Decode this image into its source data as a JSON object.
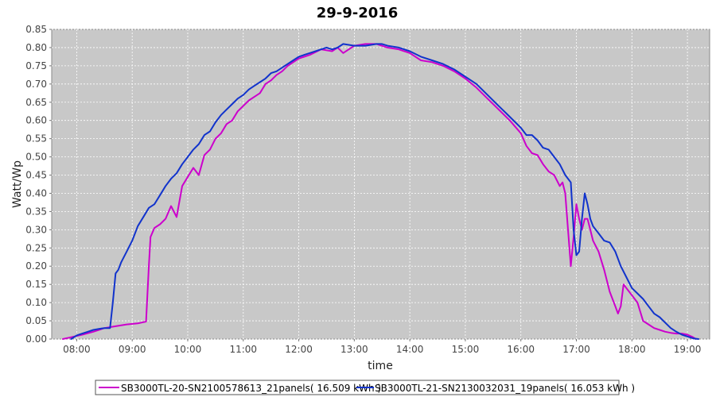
{
  "chart_data": {
    "type": "line",
    "title": "29-9-2016",
    "xlabel": "time",
    "ylabel": "Watt/Wp",
    "xlim": [
      7.55,
      19.4
    ],
    "ylim": [
      0,
      0.85
    ],
    "x_ticks": [
      8,
      9,
      10,
      11,
      12,
      13,
      14,
      15,
      16,
      17,
      18,
      19
    ],
    "x_tick_labels": [
      "08:00",
      "09:00",
      "10:00",
      "11:00",
      "12:00",
      "13:00",
      "14:00",
      "15:00",
      "16:00",
      "17:00",
      "18:00",
      "19:00"
    ],
    "y_ticks": [
      0,
      0.05,
      0.1,
      0.15,
      0.2,
      0.25,
      0.3,
      0.35,
      0.4,
      0.45,
      0.5,
      0.55,
      0.6,
      0.65,
      0.7,
      0.75,
      0.8,
      0.85
    ],
    "y_tick_labels": [
      "0.00",
      "0.05",
      "0.10",
      "0.15",
      "0.20",
      "0.25",
      "0.30",
      "0.35",
      "0.40",
      "0.45",
      "0.50",
      "0.55",
      "0.60",
      "0.65",
      "0.70",
      "0.75",
      "0.80",
      "0.85"
    ],
    "grid": true,
    "legend_position": "bottom",
    "plot_background": "#c8c8c8",
    "series": [
      {
        "name": "SB3000TL-20-SN2100578613_21panels( 16.509 kWh )",
        "color": "#cc00cc",
        "x": [
          7.75,
          7.9,
          8.1,
          8.3,
          8.5,
          8.7,
          8.9,
          9.1,
          9.25,
          9.3,
          9.33,
          9.4,
          9.5,
          9.6,
          9.7,
          9.8,
          9.9,
          10.0,
          10.1,
          10.2,
          10.3,
          10.4,
          10.5,
          10.6,
          10.7,
          10.8,
          10.9,
          11.0,
          11.1,
          11.2,
          11.3,
          11.4,
          11.5,
          11.6,
          11.7,
          11.8,
          11.9,
          12.0,
          12.2,
          12.4,
          12.6,
          12.7,
          12.8,
          13.0,
          13.2,
          13.4,
          13.6,
          13.8,
          14.0,
          14.2,
          14.4,
          14.6,
          14.8,
          15.0,
          15.2,
          15.4,
          15.6,
          15.8,
          16.0,
          16.1,
          16.2,
          16.3,
          16.4,
          16.5,
          16.6,
          16.7,
          16.75,
          16.8,
          16.85,
          16.9,
          16.95,
          17.0,
          17.05,
          17.1,
          17.15,
          17.2,
          17.25,
          17.3,
          17.4,
          17.5,
          17.6,
          17.7,
          17.75,
          17.8,
          17.85,
          17.9,
          18.0,
          18.1,
          18.2,
          18.3,
          18.4,
          18.5,
          18.6,
          18.7,
          18.8,
          18.9,
          19.0,
          19.1,
          19.15
        ],
        "y": [
          0.0,
          0.005,
          0.012,
          0.02,
          0.03,
          0.035,
          0.04,
          0.043,
          0.048,
          0.2,
          0.28,
          0.305,
          0.315,
          0.33,
          0.365,
          0.335,
          0.42,
          0.445,
          0.47,
          0.45,
          0.505,
          0.52,
          0.55,
          0.565,
          0.59,
          0.6,
          0.625,
          0.64,
          0.655,
          0.665,
          0.675,
          0.7,
          0.71,
          0.725,
          0.735,
          0.75,
          0.76,
          0.77,
          0.78,
          0.795,
          0.79,
          0.8,
          0.785,
          0.805,
          0.81,
          0.81,
          0.8,
          0.795,
          0.785,
          0.765,
          0.76,
          0.75,
          0.735,
          0.715,
          0.69,
          0.66,
          0.63,
          0.6,
          0.565,
          0.53,
          0.51,
          0.505,
          0.48,
          0.46,
          0.45,
          0.42,
          0.43,
          0.4,
          0.3,
          0.2,
          0.28,
          0.37,
          0.33,
          0.3,
          0.33,
          0.33,
          0.3,
          0.27,
          0.24,
          0.19,
          0.13,
          0.09,
          0.07,
          0.09,
          0.15,
          0.14,
          0.12,
          0.1,
          0.05,
          0.04,
          0.03,
          0.025,
          0.02,
          0.017,
          0.015,
          0.015,
          0.012,
          0.005,
          0.0
        ]
      },
      {
        "name": "SB3000TL-21-SN2130032031_19panels( 16.053 kWh )",
        "color": "#1133cc",
        "x": [
          7.9,
          8.0,
          8.1,
          8.2,
          8.3,
          8.4,
          8.5,
          8.6,
          8.65,
          8.7,
          8.75,
          8.8,
          8.9,
          9.0,
          9.1,
          9.2,
          9.3,
          9.4,
          9.5,
          9.6,
          9.7,
          9.8,
          9.9,
          10.0,
          10.1,
          10.2,
          10.3,
          10.4,
          10.5,
          10.6,
          10.7,
          10.8,
          10.9,
          11.0,
          11.1,
          11.2,
          11.3,
          11.4,
          11.5,
          11.6,
          11.7,
          11.8,
          11.9,
          12.0,
          12.2,
          12.4,
          12.5,
          12.6,
          12.7,
          12.8,
          13.0,
          13.2,
          13.4,
          13.5,
          13.6,
          13.8,
          14.0,
          14.2,
          14.4,
          14.6,
          14.8,
          15.0,
          15.2,
          15.4,
          15.6,
          15.8,
          16.0,
          16.1,
          16.2,
          16.3,
          16.4,
          16.5,
          16.6,
          16.7,
          16.8,
          16.85,
          16.9,
          16.95,
          17.0,
          17.05,
          17.1,
          17.15,
          17.2,
          17.25,
          17.3,
          17.4,
          17.5,
          17.6,
          17.7,
          17.8,
          17.9,
          18.0,
          18.1,
          18.2,
          18.3,
          18.4,
          18.5,
          18.6,
          18.7,
          18.8,
          18.9,
          19.0,
          19.1,
          19.2
        ],
        "y": [
          0.0,
          0.01,
          0.015,
          0.02,
          0.025,
          0.028,
          0.03,
          0.03,
          0.1,
          0.18,
          0.19,
          0.21,
          0.24,
          0.27,
          0.31,
          0.335,
          0.36,
          0.37,
          0.395,
          0.42,
          0.44,
          0.455,
          0.48,
          0.5,
          0.52,
          0.535,
          0.56,
          0.57,
          0.595,
          0.615,
          0.63,
          0.645,
          0.66,
          0.67,
          0.685,
          0.695,
          0.705,
          0.715,
          0.73,
          0.735,
          0.745,
          0.755,
          0.765,
          0.775,
          0.785,
          0.795,
          0.8,
          0.795,
          0.8,
          0.81,
          0.805,
          0.805,
          0.81,
          0.81,
          0.805,
          0.8,
          0.79,
          0.775,
          0.765,
          0.755,
          0.74,
          0.72,
          0.7,
          0.67,
          0.64,
          0.61,
          0.58,
          0.56,
          0.56,
          0.545,
          0.525,
          0.52,
          0.5,
          0.48,
          0.45,
          0.44,
          0.43,
          0.3,
          0.23,
          0.24,
          0.33,
          0.4,
          0.37,
          0.33,
          0.31,
          0.29,
          0.27,
          0.265,
          0.24,
          0.2,
          0.17,
          0.14,
          0.125,
          0.11,
          0.09,
          0.07,
          0.06,
          0.045,
          0.03,
          0.02,
          0.012,
          0.007,
          0.002,
          0.0
        ]
      }
    ]
  }
}
